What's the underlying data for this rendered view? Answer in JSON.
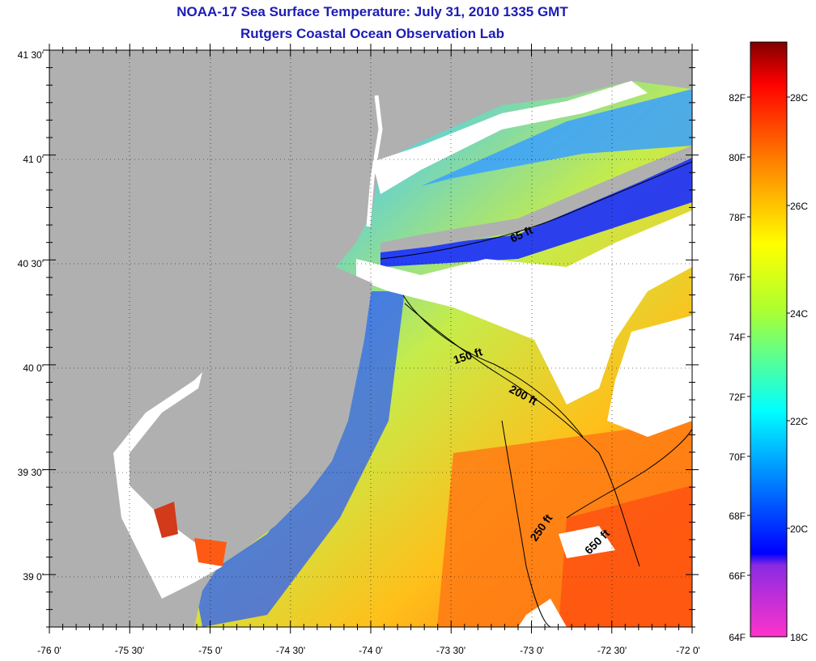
{
  "title": "NOAA-17 Sea Surface Temperature:  July 31, 2010 1335 GMT",
  "subtitle": "Rutgers Coastal Ocean Observation Lab",
  "map": {
    "lon_labels": [
      "-76 0'",
      "-75 30'",
      "-75 0'",
      "-74 30'",
      "-74 0'",
      "-73 30'",
      "-73 0'",
      "-72 30'",
      "-72 0'"
    ],
    "lat_labels": [
      "41 30'",
      "41 0'",
      "40 30'",
      "40 0'",
      "39 30'",
      "39 0'"
    ],
    "lon_range": [
      -76.0,
      -72.0
    ],
    "lat_range": [
      38.75,
      41.5
    ],
    "contours": [
      "65 ft",
      "150 ft",
      "200 ft",
      "250 ft",
      "650 ft"
    ]
  },
  "colorbar": {
    "fahrenheit": [
      "82F",
      "80F",
      "78F",
      "76F",
      "74F",
      "72F",
      "70F",
      "68F",
      "66F",
      "64F"
    ],
    "celsius": [
      "28C",
      "26C",
      "24C",
      "22C",
      "20C",
      "18C"
    ],
    "colors": {
      "magenta": "#ff33cc",
      "purple": "#8a2be2",
      "blue": "#0000ff",
      "cyan": "#00ffff",
      "yellow": "#ffff00",
      "orange": "#ff8000",
      "red": "#ff0000",
      "darkred": "#800000"
    }
  },
  "colors": {
    "land": "#b0b0b0",
    "title": "#1c1cb4",
    "cloud": "#ffffff"
  }
}
